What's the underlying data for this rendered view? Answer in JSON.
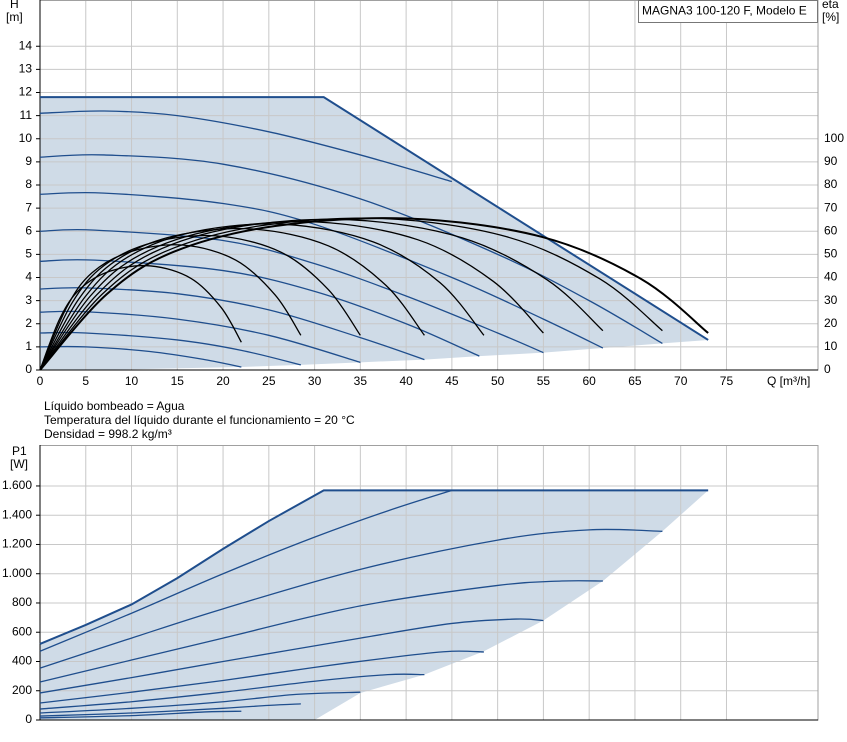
{
  "chart_data": [
    {
      "type": "line",
      "title": "MAGNA3 100-120 F, Modelo E",
      "y_label": "H",
      "y_unit": "[m]",
      "y2_label": "eta",
      "y2_unit": "[%]",
      "x_label": "Q [m³/h]",
      "xlim": [
        0,
        85
      ],
      "ylim": [
        0,
        16
      ],
      "y2lim": [
        0,
        160
      ],
      "xticks": [
        0,
        5,
        10,
        15,
        20,
        25,
        30,
        35,
        40,
        45,
        50,
        55,
        60,
        65,
        70,
        75
      ],
      "yticks": [
        0,
        1,
        2,
        3,
        4,
        5,
        6,
        7,
        8,
        9,
        10,
        11,
        12,
        13,
        14
      ],
      "y2ticks": [
        0,
        10,
        20,
        30,
        40,
        50,
        60,
        70,
        80,
        90,
        100
      ],
      "grid": true,
      "area_color": "#cfdbe7",
      "envelope_lower": {
        "x": [
          73,
          68,
          61.5,
          55,
          48,
          42,
          35,
          28.5,
          22,
          10,
          0
        ],
        "values": [
          1.3,
          1.15,
          0.95,
          0.75,
          0.6,
          0.45,
          0.33,
          0.22,
          0.13,
          0.03,
          0
        ]
      },
      "series": [
        {
          "color": "#1f4e8d",
          "line_width": 2,
          "smooth": false,
          "x": [
            0,
            31,
            73
          ],
          "values": [
            11.8,
            11.8,
            1.3
          ]
        },
        {
          "color": "#1f4e8d",
          "x": [
            0,
            7,
            15,
            25,
            35,
            45
          ],
          "values": [
            11.1,
            11.2,
            11.0,
            10.3,
            9.3,
            8.15
          ]
        },
        {
          "color": "#1f4e8d",
          "x": [
            0,
            7,
            20,
            35,
            50,
            60,
            68
          ],
          "values": [
            9.2,
            9.3,
            8.9,
            7.4,
            5.0,
            3.0,
            1.15
          ]
        },
        {
          "color": "#1f4e8d",
          "x": [
            0,
            7,
            20,
            30,
            45,
            55,
            61.5
          ],
          "values": [
            7.6,
            7.65,
            7.2,
            6.3,
            4.0,
            2.2,
            0.95
          ]
        },
        {
          "color": "#1f4e8d",
          "x": [
            0,
            6,
            20,
            30,
            40,
            50,
            55
          ],
          "values": [
            6.0,
            6.05,
            5.6,
            4.6,
            3.2,
            1.6,
            0.75
          ]
        },
        {
          "color": "#1f4e8d",
          "x": [
            0,
            6,
            20,
            30,
            40,
            48
          ],
          "values": [
            4.7,
            4.75,
            4.3,
            3.4,
            2.0,
            0.6
          ]
        },
        {
          "color": "#1f4e8d",
          "x": [
            0,
            5,
            15,
            25,
            35,
            42
          ],
          "values": [
            3.5,
            3.55,
            3.3,
            2.6,
            1.4,
            0.45
          ]
        },
        {
          "color": "#1f4e8d",
          "x": [
            0,
            5,
            15,
            25,
            35
          ],
          "values": [
            2.5,
            2.52,
            2.2,
            1.5,
            0.33
          ]
        },
        {
          "color": "#1f4e8d",
          "x": [
            0,
            5,
            15,
            22,
            28.5
          ],
          "values": [
            1.6,
            1.6,
            1.3,
            0.85,
            0.22
          ]
        },
        {
          "color": "#1f4e8d",
          "x": [
            0,
            5,
            12,
            18,
            22
          ],
          "values": [
            1.0,
            1.0,
            0.8,
            0.45,
            0.13
          ]
        },
        {
          "color": "#000000",
          "axis": "y2",
          "x": [
            0,
            2.2,
            4.4,
            7.7,
            12.1,
            16.5,
            19.8,
            22
          ],
          "values": [
            0,
            22.5,
            35.1,
            42.8,
            45,
            39.6,
            27,
            12
          ]
        },
        {
          "color": "#000000",
          "axis": "y2",
          "x": [
            0,
            2.9,
            5.7,
            10,
            15.7,
            21.4,
            25.7,
            28.5
          ],
          "values": [
            0,
            27,
            42.1,
            51.3,
            54,
            47.5,
            32.4,
            15
          ]
        },
        {
          "color": "#000000",
          "axis": "y2",
          "x": [
            0,
            3.5,
            7,
            12.3,
            19.3,
            26.3,
            31.5,
            35
          ],
          "values": [
            0,
            29,
            45.2,
            55.1,
            58,
            51,
            34.8,
            15
          ]
        },
        {
          "color": "#000000",
          "axis": "y2",
          "x": [
            0,
            4.2,
            8.4,
            14.7,
            23.1,
            31.5,
            37.8,
            42
          ],
          "values": [
            0,
            30.5,
            47.6,
            58,
            61,
            53.7,
            36.6,
            15
          ]
        },
        {
          "color": "#000000",
          "axis": "y2",
          "x": [
            0,
            4.9,
            9.7,
            17,
            26.7,
            36.4,
            43.7,
            48.5
          ],
          "values": [
            0,
            31.5,
            49.1,
            59.9,
            63,
            55.4,
            37.8,
            15
          ]
        },
        {
          "color": "#000000",
          "axis": "y2",
          "x": [
            0,
            5.5,
            11,
            19.3,
            30.3,
            41.3,
            49.5,
            55
          ],
          "values": [
            0,
            32,
            49.9,
            60.8,
            64,
            56.3,
            38.4,
            16
          ]
        },
        {
          "color": "#000000",
          "axis": "y2",
          "x": [
            0,
            6.2,
            12.3,
            21.5,
            33.8,
            46.1,
            55.4,
            61.5
          ],
          "values": [
            0,
            32.5,
            50.7,
            61.8,
            65,
            57.2,
            39,
            17
          ]
        },
        {
          "color": "#000000",
          "axis": "y2",
          "x": [
            0,
            6.8,
            13.6,
            23.8,
            37.4,
            51,
            61.2,
            68
          ],
          "values": [
            0,
            32.8,
            51.1,
            62.2,
            65.5,
            57.6,
            39.3,
            17
          ]
        },
        {
          "color": "#000000",
          "axis": "y2",
          "line_width": 2,
          "x": [
            0,
            7.3,
            14.6,
            25.6,
            40.2,
            54.8,
            65.7,
            73
          ],
          "values": [
            0,
            32.8,
            51.1,
            62.2,
            65.5,
            57.6,
            39.3,
            16
          ]
        }
      ]
    },
    {
      "type": "line",
      "y_label": "P1",
      "y_unit": "[W]",
      "xlim": [
        0,
        85
      ],
      "ylim": [
        0,
        1880
      ],
      "yticks": [
        0,
        200,
        400,
        600,
        800,
        {
          "value": 1000,
          "label": "1.000"
        },
        {
          "value": 1200,
          "label": "1.200"
        },
        {
          "value": 1400,
          "label": "1.400"
        },
        {
          "value": 1600,
          "label": "1.600"
        }
      ],
      "grid": true,
      "area_color": "#cfdbe7",
      "envelope_lower": {
        "x": [
          73,
          68,
          61.5,
          55,
          48.5,
          42,
          35,
          30,
          0
        ],
        "values": [
          1570,
          1290,
          950,
          680,
          470,
          310,
          185,
          0,
          0
        ]
      },
      "series": [
        {
          "color": "#1f4e8d",
          "line_width": 2,
          "smooth": false,
          "x": [
            0,
            5,
            10,
            15,
            20,
            25,
            31,
            73
          ],
          "values": [
            520,
            650,
            790,
            970,
            1170,
            1360,
            1570,
            1570
          ]
        },
        {
          "color": "#1f4e8d",
          "x": [
            0,
            10,
            20,
            30,
            38,
            45
          ],
          "values": [
            470,
            730,
            1000,
            1250,
            1430,
            1570
          ]
        },
        {
          "color": "#1f4e8d",
          "x": [
            0,
            10,
            20,
            35,
            50,
            60,
            68
          ],
          "values": [
            355,
            560,
            760,
            1030,
            1230,
            1300,
            1290
          ]
        },
        {
          "color": "#1f4e8d",
          "x": [
            0,
            10,
            20,
            35,
            50,
            57,
            61.5
          ],
          "values": [
            260,
            410,
            560,
            780,
            920,
            950,
            950
          ]
        },
        {
          "color": "#1f4e8d",
          "x": [
            0,
            10,
            20,
            35,
            45,
            52,
            55
          ],
          "values": [
            185,
            290,
            400,
            560,
            660,
            690,
            680
          ]
        },
        {
          "color": "#1f4e8d",
          "x": [
            0,
            10,
            20,
            30,
            40,
            45,
            48.5
          ],
          "values": [
            116,
            190,
            270,
            360,
            440,
            470,
            465
          ]
        },
        {
          "color": "#1f4e8d",
          "x": [
            0,
            10,
            20,
            30,
            38,
            42
          ],
          "values": [
            75,
            125,
            190,
            265,
            310,
            310
          ]
        },
        {
          "color": "#1f4e8d",
          "x": [
            0,
            10,
            20,
            28,
            35
          ],
          "values": [
            48,
            80,
            125,
            175,
            190
          ]
        },
        {
          "color": "#1f4e8d",
          "x": [
            0,
            10,
            20,
            25,
            28.5
          ],
          "values": [
            27,
            48,
            80,
            100,
            110
          ]
        },
        {
          "color": "#1f4e8d",
          "x": [
            0,
            10,
            18,
            22
          ],
          "values": [
            15,
            30,
            55,
            60
          ]
        }
      ]
    }
  ],
  "notes": [
    "Líquido bombeado = Agua",
    "Temperatura del líquido durante el funcionamiento = 20 °C",
    "Densidad = 998.2 kg/m³"
  ]
}
